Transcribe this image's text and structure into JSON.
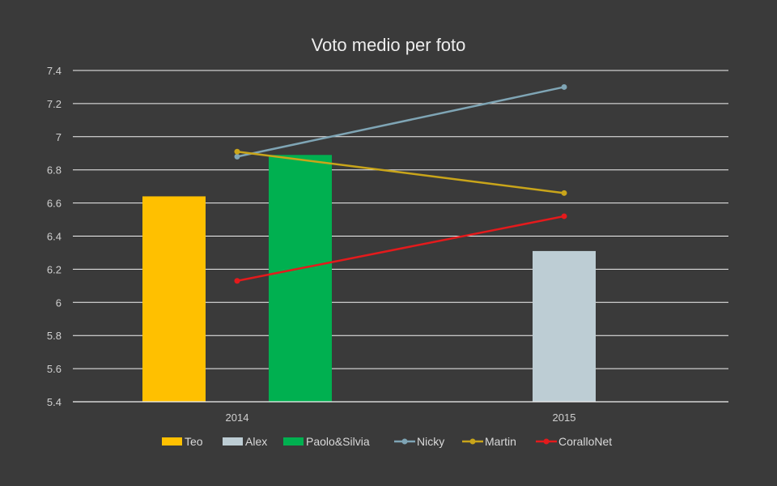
{
  "chart_data": {
    "type": "bar",
    "title": "Voto medio per foto",
    "categories": [
      "2014",
      "2015"
    ],
    "ylim": [
      5.4,
      7.4
    ],
    "yticks": [
      "5.4",
      "5.6",
      "5.8",
      "6",
      "6.2",
      "6.4",
      "6.6",
      "6.8",
      "7",
      "7.2",
      "7.4"
    ],
    "grid": true,
    "legend_position": "bottom",
    "bar_series": [
      {
        "name": "Teo",
        "color": "#ffc000",
        "values": [
          6.64,
          null
        ]
      },
      {
        "name": "Alex",
        "color": "#bdcdd4",
        "values": [
          null,
          6.31
        ]
      },
      {
        "name": "Paolo&Silvia",
        "color": "#00b050",
        "values": [
          6.89,
          null
        ]
      }
    ],
    "line_series": [
      {
        "name": "Nicky",
        "color": "#7fa5b5",
        "values": [
          6.88,
          7.3
        ]
      },
      {
        "name": "Martin",
        "color": "#c9a51a",
        "values": [
          6.91,
          6.66
        ]
      },
      {
        "name": "CoralloNet",
        "color": "#e41a1c",
        "values": [
          6.13,
          6.52
        ]
      }
    ]
  }
}
